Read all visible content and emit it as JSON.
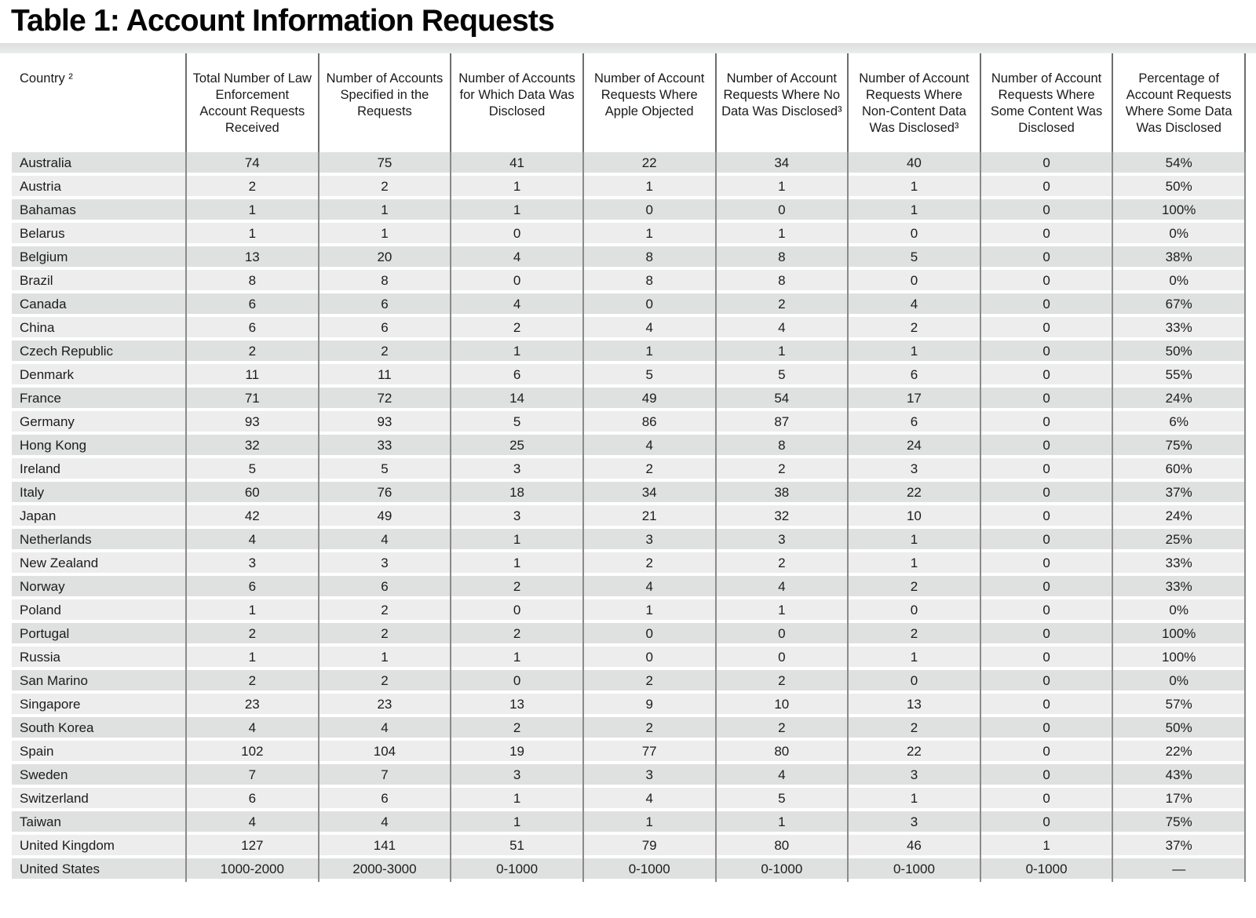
{
  "title": "Table 1: Account Information Requests",
  "colors": {
    "row_stripe_dark": "#dfe0e0",
    "row_stripe_light": "#ededee",
    "column_divider": "#8a8a8a"
  },
  "table": {
    "columns": [
      "Country ²",
      "Total Number of Law Enforcement Account Requests Received",
      "Number of Accounts Specified in the Requests",
      "Number of Accounts for Which Data Was Disclosed",
      "Number of Account Requests Where Apple Objected",
      "Number of Account Requests Where No Data Was Disclosed³",
      "Number of Account Requests Where Non-Content Data Was Disclosed³",
      "Number of Account Requests Where Some Content Was Disclosed",
      "Percentage of Account Requests Where Some Data Was Disclosed"
    ],
    "rows": [
      {
        "country": "Australia",
        "values": [
          "74",
          "75",
          "41",
          "22",
          "34",
          "40",
          "0",
          "54%"
        ]
      },
      {
        "country": "Austria",
        "values": [
          "2",
          "2",
          "1",
          "1",
          "1",
          "1",
          "0",
          "50%"
        ]
      },
      {
        "country": "Bahamas",
        "values": [
          "1",
          "1",
          "1",
          "0",
          "0",
          "1",
          "0",
          "100%"
        ]
      },
      {
        "country": "Belarus",
        "values": [
          "1",
          "1",
          "0",
          "1",
          "1",
          "0",
          "0",
          "0%"
        ]
      },
      {
        "country": "Belgium",
        "values": [
          "13",
          "20",
          "4",
          "8",
          "8",
          "5",
          "0",
          "38%"
        ]
      },
      {
        "country": "Brazil",
        "values": [
          "8",
          "8",
          "0",
          "8",
          "8",
          "0",
          "0",
          "0%"
        ]
      },
      {
        "country": "Canada",
        "values": [
          "6",
          "6",
          "4",
          "0",
          "2",
          "4",
          "0",
          "67%"
        ]
      },
      {
        "country": "China",
        "values": [
          "6",
          "6",
          "2",
          "4",
          "4",
          "2",
          "0",
          "33%"
        ]
      },
      {
        "country": "Czech Republic",
        "values": [
          "2",
          "2",
          "1",
          "1",
          "1",
          "1",
          "0",
          "50%"
        ]
      },
      {
        "country": "Denmark",
        "values": [
          "11",
          "11",
          "6",
          "5",
          "5",
          "6",
          "0",
          "55%"
        ]
      },
      {
        "country": "France",
        "values": [
          "71",
          "72",
          "14",
          "49",
          "54",
          "17",
          "0",
          "24%"
        ]
      },
      {
        "country": "Germany",
        "values": [
          "93",
          "93",
          "5",
          "86",
          "87",
          "6",
          "0",
          "6%"
        ]
      },
      {
        "country": "Hong Kong",
        "values": [
          "32",
          "33",
          "25",
          "4",
          "8",
          "24",
          "0",
          "75%"
        ]
      },
      {
        "country": "Ireland",
        "values": [
          "5",
          "5",
          "3",
          "2",
          "2",
          "3",
          "0",
          "60%"
        ]
      },
      {
        "country": "Italy",
        "values": [
          "60",
          "76",
          "18",
          "34",
          "38",
          "22",
          "0",
          "37%"
        ]
      },
      {
        "country": "Japan",
        "values": [
          "42",
          "49",
          "3",
          "21",
          "32",
          "10",
          "0",
          "24%"
        ]
      },
      {
        "country": "Netherlands",
        "values": [
          "4",
          "4",
          "1",
          "3",
          "3",
          "1",
          "0",
          "25%"
        ]
      },
      {
        "country": "New Zealand",
        "values": [
          "3",
          "3",
          "1",
          "2",
          "2",
          "1",
          "0",
          "33%"
        ]
      },
      {
        "country": "Norway",
        "values": [
          "6",
          "6",
          "2",
          "4",
          "4",
          "2",
          "0",
          "33%"
        ]
      },
      {
        "country": "Poland",
        "values": [
          "1",
          "2",
          "0",
          "1",
          "1",
          "0",
          "0",
          "0%"
        ]
      },
      {
        "country": "Portugal",
        "values": [
          "2",
          "2",
          "2",
          "0",
          "0",
          "2",
          "0",
          "100%"
        ]
      },
      {
        "country": "Russia",
        "values": [
          "1",
          "1",
          "1",
          "0",
          "0",
          "1",
          "0",
          "100%"
        ]
      },
      {
        "country": "San Marino",
        "values": [
          "2",
          "2",
          "0",
          "2",
          "2",
          "0",
          "0",
          "0%"
        ]
      },
      {
        "country": "Singapore",
        "values": [
          "23",
          "23",
          "13",
          "9",
          "10",
          "13",
          "0",
          "57%"
        ]
      },
      {
        "country": "South Korea",
        "values": [
          "4",
          "4",
          "2",
          "2",
          "2",
          "2",
          "0",
          "50%"
        ]
      },
      {
        "country": "Spain",
        "values": [
          "102",
          "104",
          "19",
          "77",
          "80",
          "22",
          "0",
          "22%"
        ]
      },
      {
        "country": "Sweden",
        "values": [
          "7",
          "7",
          "3",
          "3",
          "4",
          "3",
          "0",
          "43%"
        ]
      },
      {
        "country": "Switzerland",
        "values": [
          "6",
          "6",
          "1",
          "4",
          "5",
          "1",
          "0",
          "17%"
        ]
      },
      {
        "country": "Taiwan",
        "values": [
          "4",
          "4",
          "1",
          "1",
          "1",
          "3",
          "0",
          "75%"
        ]
      },
      {
        "country": "United Kingdom",
        "values": [
          "127",
          "141",
          "51",
          "79",
          "80",
          "46",
          "1",
          "37%"
        ]
      },
      {
        "country": "United States",
        "values": [
          "1000-2000",
          "2000-3000",
          "0-1000",
          "0-1000",
          "0-1000",
          "0-1000",
          "0-1000",
          "—"
        ]
      }
    ]
  }
}
